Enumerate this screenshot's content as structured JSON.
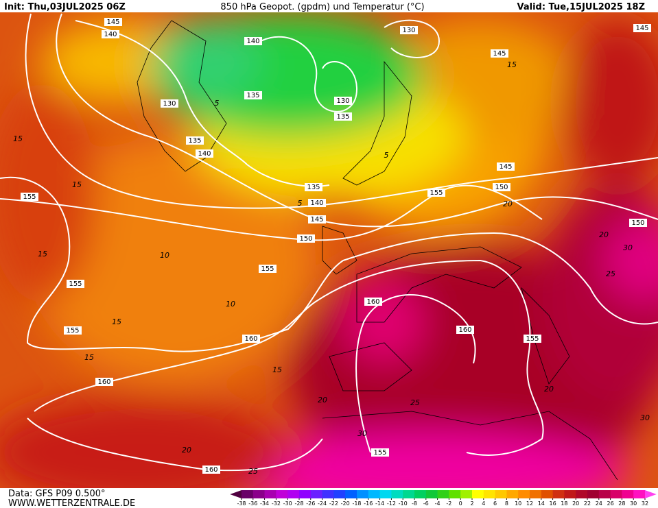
{
  "header": {
    "init": "Init: Thu,03JUL2025 06Z",
    "title": "850 hPa Geopot. (gpdm) und Temperatur (°C)",
    "valid": "Valid: Tue,15JUL2025 18Z"
  },
  "footer": {
    "data": "Data: GFS P09 0.500°",
    "site": "WWW.WETTERZENTRALE.DE"
  },
  "geopotential_labels": [
    145,
    140,
    130,
    135,
    140,
    140,
    135,
    130,
    135,
    130,
    145,
    145,
    135,
    140,
    145,
    150,
    155,
    145,
    150,
    150,
    155,
    155,
    155,
    155,
    160,
    160,
    155,
    160,
    160,
    160,
    155
  ],
  "isotherm_labels": [
    15,
    15,
    15,
    10,
    10,
    15,
    15,
    15,
    20,
    20,
    25,
    30,
    25,
    20,
    30,
    25,
    30,
    20,
    20,
    15,
    5,
    5,
    5
  ],
  "colorbar": {
    "ticks": [
      -38,
      -36,
      -34,
      -32,
      -30,
      -28,
      -26,
      -24,
      -22,
      -20,
      -18,
      -16,
      -14,
      -12,
      -10,
      -8,
      -6,
      -4,
      -2,
      0,
      2,
      4,
      6,
      8,
      10,
      12,
      14,
      16,
      18,
      20,
      22,
      24,
      26,
      28,
      30,
      32
    ],
    "colors": [
      "#500040",
      "#6a0068",
      "#8a008a",
      "#a800b0",
      "#c000d8",
      "#b000f0",
      "#9000ff",
      "#6a20ff",
      "#4030ff",
      "#2040ff",
      "#0060ff",
      "#0090ff",
      "#00b8ff",
      "#00d8f0",
      "#00dcc0",
      "#00d890",
      "#00d060",
      "#10c838",
      "#30d018",
      "#60e000",
      "#a0f000",
      "#ffff00",
      "#ffe400",
      "#ffc800",
      "#ffa800",
      "#ff8c00",
      "#f07000",
      "#e05000",
      "#d03010",
      "#c01818",
      "#b00828",
      "#a00030",
      "#b80048",
      "#d80068",
      "#f00090",
      "#ff10c0",
      "#ff40f0"
    ]
  }
}
